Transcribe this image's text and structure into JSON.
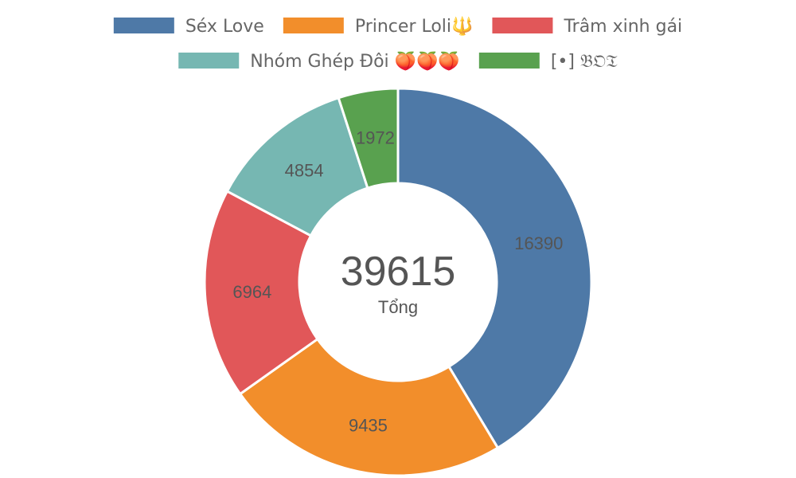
{
  "chart_data": {
    "type": "pie",
    "variant": "doughnut",
    "legend_position": "top",
    "total": 39615,
    "total_label": "Tổng",
    "series": [
      {
        "name": "Séx Love",
        "value": 16390,
        "color": "#4e79a7"
      },
      {
        "name": "Princer Loli🔱",
        "value": 9435,
        "color": "#f28e2b"
      },
      {
        "name": "Trâm xinh gái",
        "value": 6964,
        "color": "#e15759"
      },
      {
        "name": "Nhóm Ghép Đôi 🍑🍑🍑",
        "value": 4854,
        "color": "#76b7b2"
      },
      {
        "name": "[•] 𝔅𝔒𝔗",
        "value": 1972,
        "color": "#59a14f"
      }
    ]
  }
}
